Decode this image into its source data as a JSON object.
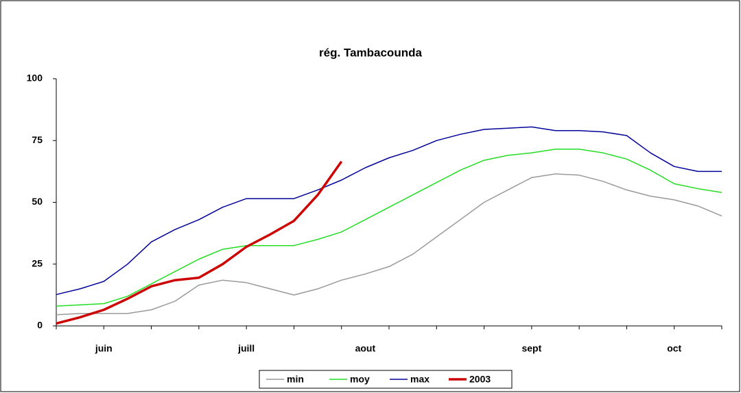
{
  "chart_data": {
    "type": "line",
    "title": "rég. Tambacounda",
    "categories": [
      null,
      null,
      "juin",
      null,
      null,
      null,
      null,
      null,
      "juill",
      null,
      null,
      null,
      null,
      "aout",
      null,
      null,
      null,
      null,
      null,
      null,
      "sept",
      null,
      null,
      null,
      null,
      null,
      "oct",
      null,
      null
    ],
    "series": [
      {
        "name": "min",
        "color": "#999999",
        "values": [
          4.5,
          5,
          5,
          5,
          6.5,
          10,
          16.5,
          18.5,
          17.5,
          15,
          12.5,
          15,
          18.5,
          21,
          24,
          29,
          36,
          43,
          50,
          55,
          60,
          61.5,
          61,
          58.5,
          55,
          52.5,
          51,
          48.5,
          44.5
        ]
      },
      {
        "name": "moy",
        "color": "#22dd22",
        "values": [
          8,
          8.5,
          9,
          12,
          17,
          22,
          27,
          31,
          32.5,
          32.5,
          32.5,
          35,
          38,
          43,
          48,
          53,
          58,
          63,
          67,
          69,
          70,
          71.5,
          71.5,
          70,
          67.5,
          63,
          57.5,
          55.5,
          54
        ]
      },
      {
        "name": "max",
        "color": "#000099",
        "values": [
          12.7,
          15,
          18,
          25,
          34,
          39,
          43,
          48,
          51.5,
          51.5,
          51.5,
          55,
          59,
          64,
          68,
          71,
          75,
          77.5,
          79.5,
          80,
          80.5,
          79,
          79,
          78.5,
          77,
          70,
          64.5,
          62.5,
          62.5
        ]
      },
      {
        "name": "2003",
        "color": "#cc0000",
        "values": [
          1,
          3.5,
          6.5,
          11,
          16,
          18.5,
          19.5,
          25,
          32,
          37,
          42.5,
          53,
          66.5,
          null,
          null,
          null,
          null,
          null,
          null,
          null,
          null,
          null,
          null,
          null,
          null,
          null,
          null,
          null,
          null
        ]
      }
    ],
    "ylim": [
      0,
      100
    ],
    "yticks": [
      0,
      25,
      50,
      75,
      100
    ],
    "grid": false,
    "legend": "bottom"
  }
}
